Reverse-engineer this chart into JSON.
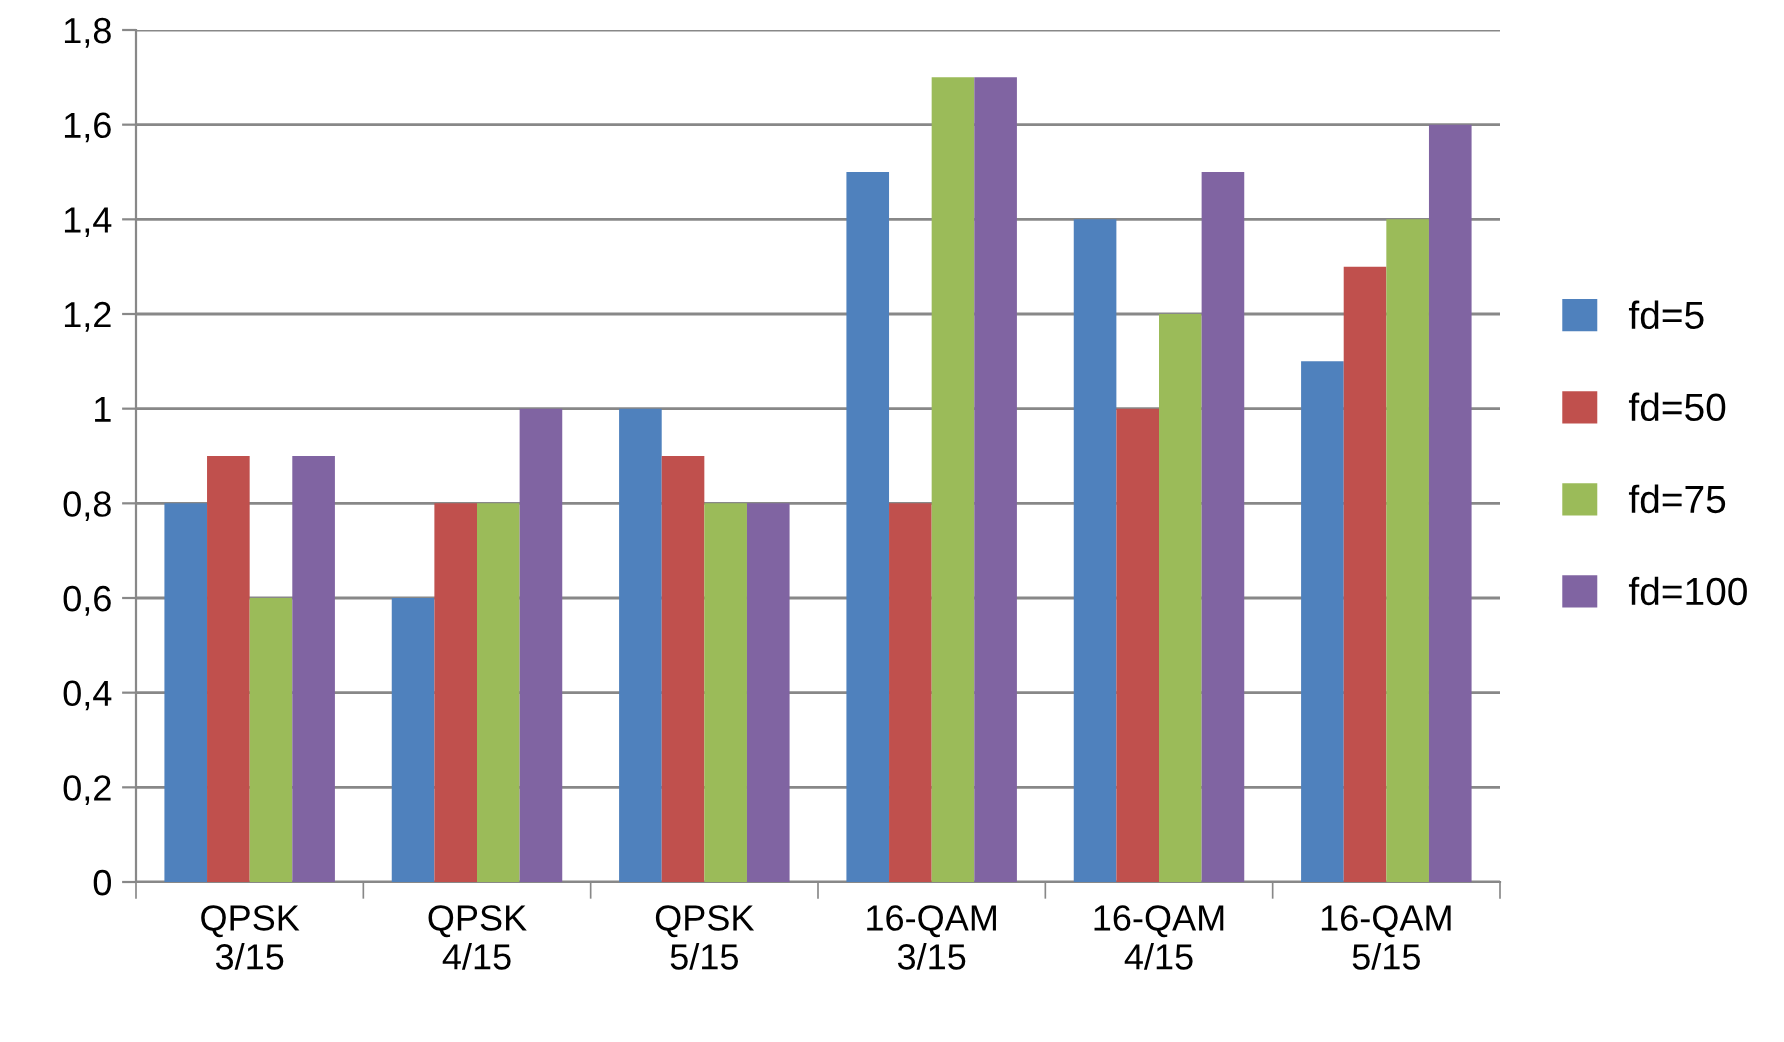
{
  "chart_data": {
    "type": "bar",
    "categories": [
      "QPSK\n3/15",
      "QPSK\n4/15",
      "QPSK\n5/15",
      "16-QAM\n3/15",
      "16-QAM\n4/15",
      "16-QAM\n5/15"
    ],
    "series": [
      {
        "name": "fd=5",
        "color": "#4f81bd",
        "values": [
          0.8,
          0.6,
          1.0,
          1.5,
          1.4,
          1.1
        ]
      },
      {
        "name": "fd=50",
        "color": "#c0504d",
        "values": [
          0.9,
          0.8,
          0.9,
          0.8,
          1.0,
          1.3
        ]
      },
      {
        "name": "fd=75",
        "color": "#9bbb59",
        "values": [
          0.6,
          0.8,
          0.8,
          1.7,
          1.2,
          1.4
        ]
      },
      {
        "name": "fd=100",
        "color": "#8064a2",
        "values": [
          0.9,
          1.0,
          0.8,
          1.7,
          1.5,
          1.6
        ]
      }
    ],
    "ylim": [
      0,
      1.8
    ],
    "yticks": [
      0,
      {
        "value": 0.2,
        "label": "0,2"
      },
      {
        "value": 0.4,
        "label": "0,4"
      },
      {
        "value": 0.6,
        "label": "0,6"
      },
      {
        "value": 0.8,
        "label": "0,8"
      },
      1,
      {
        "value": 1.2,
        "label": "1,2"
      },
      {
        "value": 1.4,
        "label": "1,4"
      },
      {
        "value": 1.6,
        "label": "1,6"
      },
      {
        "value": 1.8,
        "label": "1,8"
      }
    ],
    "grid": "y",
    "legend": "right"
  }
}
